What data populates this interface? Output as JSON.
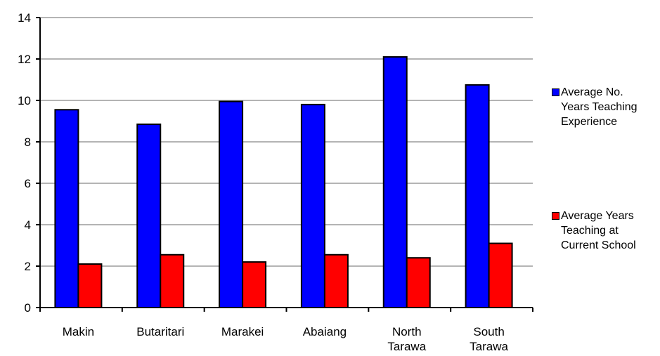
{
  "chart_data": {
    "type": "bar",
    "categories": [
      [
        "Makin"
      ],
      [
        "Butaritari"
      ],
      [
        "Marakei"
      ],
      [
        "Abaiang"
      ],
      [
        "North",
        "Tarawa"
      ],
      [
        "South",
        "Tarawa"
      ]
    ],
    "series": [
      {
        "name": "Average No.\nYears Teaching\nExperience",
        "color": "#0000ff",
        "values": [
          9.55,
          8.85,
          9.95,
          9.8,
          12.1,
          10.75
        ]
      },
      {
        "name": "Average Years\nTeaching at\nCurrent School",
        "color": "#ff0000",
        "values": [
          2.1,
          2.55,
          2.2,
          2.55,
          2.4,
          3.1
        ]
      }
    ],
    "ylim": [
      0,
      14
    ],
    "yticks": [
      "0",
      "2",
      "4",
      "6",
      "8",
      "10",
      "12",
      "14"
    ],
    "grid": true,
    "legend_position": "right"
  }
}
